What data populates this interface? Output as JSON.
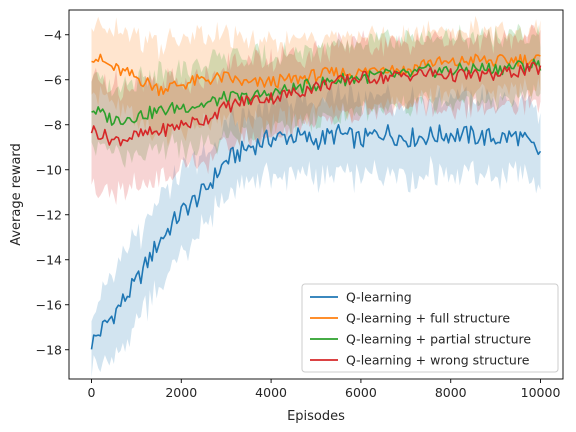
{
  "chart_data": {
    "type": "line",
    "title": "",
    "xlabel": "Episodes",
    "ylabel": "Average reward",
    "xlim": [
      -500,
      10500
    ],
    "ylim": [
      -19.3,
      -2.9
    ],
    "xticks": [
      0,
      2000,
      4000,
      6000,
      8000,
      10000
    ],
    "yticks": [
      -18,
      -16,
      -14,
      -12,
      -10,
      -8,
      -6,
      -4
    ],
    "grid": false,
    "legend_position": "lower-right",
    "shaded_band": "variability band around each mean line",
    "series": [
      {
        "name": "Q-learning",
        "color": "#1f77b4",
        "x": [
          0,
          500,
          1000,
          1500,
          2000,
          2500,
          3000,
          3500,
          4000,
          4500,
          5000,
          5500,
          6000,
          6500,
          7000,
          7500,
          8000,
          8500,
          9000,
          9500,
          10000
        ],
        "y": [
          -17.7,
          -16.4,
          -15.0,
          -13.2,
          -11.9,
          -11.0,
          -9.6,
          -9.0,
          -8.6,
          -8.5,
          -8.7,
          -8.4,
          -8.7,
          -8.3,
          -8.6,
          -8.5,
          -8.4,
          -8.5,
          -8.6,
          -8.5,
          -9.3
        ],
        "band": [
          1.1,
          1.8,
          2.0,
          1.9,
          1.7,
          1.6,
          1.5,
          1.5,
          1.6,
          1.7,
          1.6,
          1.6,
          1.7,
          1.7,
          1.7,
          1.6,
          1.6,
          1.6,
          1.7,
          1.7,
          1.6
        ]
      },
      {
        "name": "Q-learning + full structure",
        "color": "#ff7f0e",
        "x": [
          0,
          500,
          1000,
          1500,
          2000,
          2500,
          3000,
          3500,
          4000,
          4500,
          5000,
          5500,
          6000,
          6500,
          7000,
          7500,
          8000,
          8500,
          9000,
          9500,
          10000
        ],
        "y": [
          -4.9,
          -5.5,
          -5.9,
          -6.4,
          -6.2,
          -6.0,
          -5.9,
          -6.2,
          -6.1,
          -6.0,
          -5.8,
          -5.7,
          -5.7,
          -5.4,
          -5.6,
          -5.2,
          -5.3,
          -5.1,
          -5.2,
          -5.1,
          -5.1
        ],
        "band": [
          1.5,
          1.8,
          1.9,
          2.0,
          2.0,
          1.9,
          1.8,
          1.8,
          1.8,
          1.7,
          1.6,
          1.6,
          1.6,
          1.5,
          1.5,
          1.5,
          1.4,
          1.4,
          1.4,
          1.3,
          1.3
        ]
      },
      {
        "name": "Q-learning + partial structure",
        "color": "#2ca02c",
        "x": [
          0,
          500,
          1000,
          1500,
          2000,
          2500,
          3000,
          3500,
          4000,
          4500,
          5000,
          5500,
          6000,
          6500,
          7000,
          7500,
          8000,
          8500,
          9000,
          9500,
          10000
        ],
        "y": [
          -7.3,
          -7.8,
          -7.6,
          -7.4,
          -7.2,
          -7.1,
          -6.8,
          -6.8,
          -6.6,
          -6.4,
          -6.2,
          -6.0,
          -5.9,
          -5.8,
          -5.8,
          -5.6,
          -5.6,
          -5.5,
          -5.5,
          -5.4,
          -5.3
        ],
        "band": [
          1.5,
          1.6,
          1.7,
          1.8,
          1.8,
          1.8,
          1.8,
          1.7,
          1.7,
          1.6,
          1.6,
          1.5,
          1.5,
          1.5,
          1.5,
          1.4,
          1.4,
          1.4,
          1.4,
          1.4,
          1.3
        ]
      },
      {
        "name": "Q-learning + wrong structure",
        "color": "#d62728",
        "x": [
          0,
          500,
          1000,
          1500,
          2000,
          2500,
          3000,
          3500,
          4000,
          4500,
          5000,
          5500,
          6000,
          6500,
          7000,
          7500,
          8000,
          8500,
          9000,
          9500,
          10000
        ],
        "y": [
          -8.2,
          -8.7,
          -8.5,
          -8.3,
          -8.0,
          -7.8,
          -7.2,
          -6.9,
          -6.8,
          -6.6,
          -6.3,
          -6.1,
          -5.9,
          -5.9,
          -5.8,
          -5.7,
          -5.8,
          -5.8,
          -5.8,
          -5.6,
          -5.5
        ],
        "band": [
          2.3,
          2.5,
          2.4,
          2.2,
          2.0,
          1.9,
          1.8,
          1.8,
          1.7,
          1.7,
          1.6,
          1.6,
          1.6,
          1.5,
          1.5,
          1.5,
          1.5,
          1.5,
          1.5,
          1.5,
          1.5
        ]
      }
    ]
  }
}
